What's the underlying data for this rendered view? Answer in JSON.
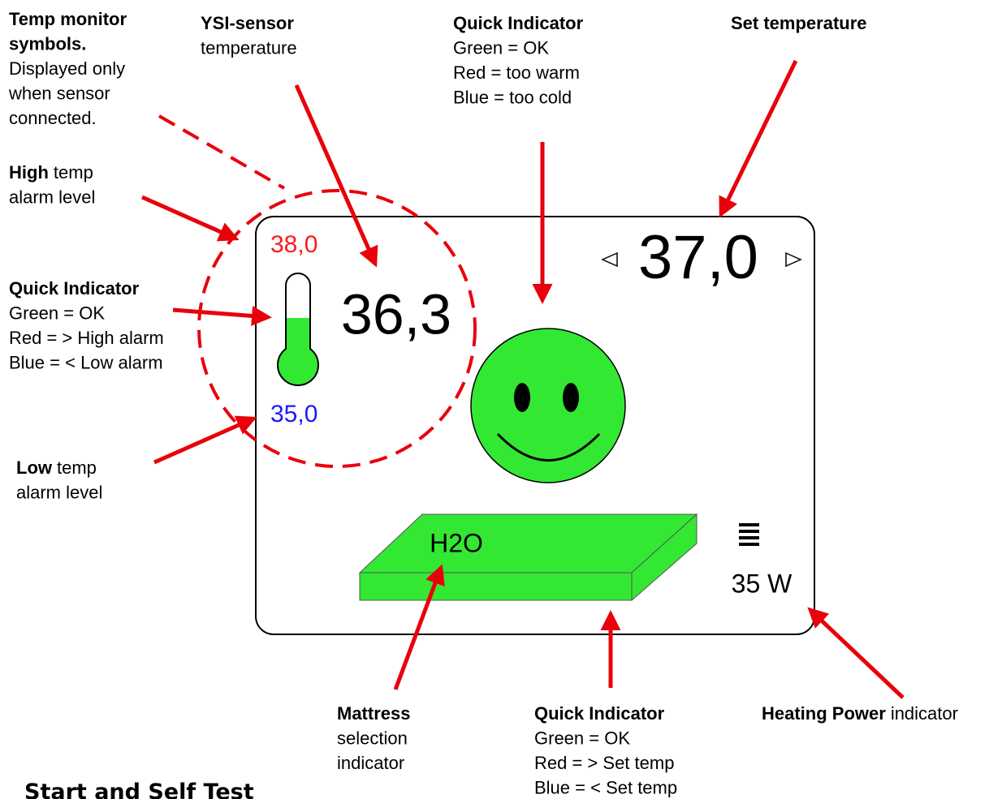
{
  "annotations": [
    {
      "lines": [
        {
          "bold": "Temp monitor"
        },
        {
          "bold": "symbols."
        },
        {
          "text": "Displayed only"
        },
        {
          "text": "when sensor"
        },
        {
          "text": "connected."
        }
      ]
    },
    {
      "lines": [
        {
          "bold": "High",
          "text": "temp"
        },
        {
          "text": "alarm level"
        }
      ]
    },
    {
      "lines": [
        {
          "bold": "Quick Indicator"
        },
        {
          "text": "Green = OK"
        },
        {
          "text": "Red = > High alarm"
        },
        {
          "text": "Blue = < Low alarm"
        }
      ]
    },
    {
      "lines": [
        {
          "bold": "Low",
          "text": "temp"
        },
        {
          "text": "alarm level"
        }
      ]
    },
    {
      "lines": [
        {
          "bold": "YSI-sensor"
        },
        {
          "text": "temperature"
        }
      ]
    },
    {
      "lines": [
        {
          "bold": "Quick Indicator"
        },
        {
          "text": "Green = OK"
        },
        {
          "text": "Red = too warm"
        },
        {
          "text": "Blue = too cold"
        }
      ]
    },
    {
      "lines": [
        {
          "bold": "Set temperature"
        }
      ]
    },
    {
      "lines": [
        {
          "bold": "Mattress"
        },
        {
          "text": "selection"
        },
        {
          "text": "indicator"
        }
      ]
    },
    {
      "lines": [
        {
          "bold": "Quick Indicator"
        },
        {
          "text": "Green = OK"
        },
        {
          "text": "Red = > Set temp"
        },
        {
          "text": "Blue = < Set temp"
        }
      ]
    },
    {
      "lines": [
        {
          "bold": "Heating Power",
          "text": "indicator"
        }
      ]
    }
  ],
  "screen": {
    "high_alarm": "38,0",
    "sensor_temp": "36,3",
    "low_alarm": "35,0",
    "set_temp": "37,0",
    "mattress": "H2O",
    "power": "35 W"
  },
  "heading": "Start and Self Test"
}
